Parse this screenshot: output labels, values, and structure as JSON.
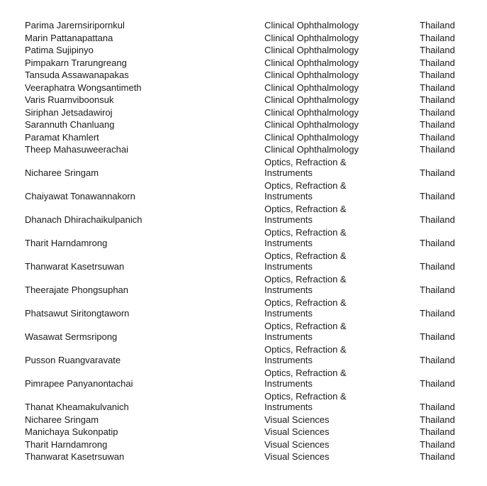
{
  "page": {
    "background_color": "#ffffff",
    "text_color": "#1a1a1a"
  },
  "table": {
    "fields": [
      "name",
      "subject",
      "country"
    ],
    "rows": [
      {
        "name": "Parima Jarernsiripornkul",
        "subject": "Clinical Ophthalmology",
        "country": "Thailand"
      },
      {
        "name": "Marin Pattanapattana",
        "subject": "Clinical Ophthalmology",
        "country": "Thailand"
      },
      {
        "name": "Patima Sujipinyo",
        "subject": "Clinical Ophthalmology",
        "country": "Thailand"
      },
      {
        "name": "Pimpakarn Trarungreang",
        "subject": "Clinical Ophthalmology",
        "country": "Thailand"
      },
      {
        "name": "Tansuda Assawanapakas",
        "subject": "Clinical Ophthalmology",
        "country": "Thailand"
      },
      {
        "name": "Veeraphatra Wongsantimeth",
        "subject": "Clinical Ophthalmology",
        "country": "Thailand"
      },
      {
        "name": "Varis Ruamviboonsuk",
        "subject": "Clinical Ophthalmology",
        "country": "Thailand"
      },
      {
        "name": "Siriphan Jetsadawiroj",
        "subject": "Clinical Ophthalmology",
        "country": "Thailand"
      },
      {
        "name": "Sarannuth Chanluang",
        "subject": "Clinical Ophthalmology",
        "country": "Thailand"
      },
      {
        "name": "Paramat Khamlert",
        "subject": "Clinical Ophthalmology",
        "country": "Thailand"
      },
      {
        "name": "Theep Mahasuweerachai",
        "subject": "Clinical Ophthalmology",
        "country": "Thailand"
      },
      {
        "name": "Nicharee Sringam",
        "subject": "Optics, Refraction & Instruments",
        "country": "Thailand"
      },
      {
        "name": "Chaiyawat Tonawannakorn",
        "subject": "Optics, Refraction & Instruments",
        "country": "Thailand"
      },
      {
        "name": "Dhanach Dhirachaikulpanich",
        "subject": "Optics, Refraction & Instruments",
        "country": "Thailand"
      },
      {
        "name": "Tharit Harndamrong",
        "subject": "Optics, Refraction & Instruments",
        "country": "Thailand"
      },
      {
        "name": "Thanwarat Kasetrsuwan",
        "subject": "Optics, Refraction & Instruments",
        "country": "Thailand"
      },
      {
        "name": "Theerajate Phongsuphan",
        "subject": "Optics, Refraction & Instruments",
        "country": "Thailand"
      },
      {
        "name": "Phatsawut Siritongtaworn",
        "subject": "Optics, Refraction & Instruments",
        "country": "Thailand"
      },
      {
        "name": "Wasawat Sermsripong",
        "subject": "Optics, Refraction & Instruments",
        "country": "Thailand"
      },
      {
        "name": "Pusson Ruangvaravate",
        "subject": "Optics, Refraction & Instruments",
        "country": "Thailand"
      },
      {
        "name": "Pimrapee Panyanontachai",
        "subject": "Optics, Refraction & Instruments",
        "country": "Thailand"
      },
      {
        "name": "Thanat Kheamakulvanich",
        "subject": "Optics, Refraction & Instruments",
        "country": "Thailand"
      },
      {
        "name": "Nicharee Sringam",
        "subject": "Visual Sciences",
        "country": "Thailand"
      },
      {
        "name": "Manichaya Sukonpatip",
        "subject": "Visual Sciences",
        "country": "Thailand"
      },
      {
        "name": "Tharit Harndamrong",
        "subject": "Visual Sciences",
        "country": "Thailand"
      },
      {
        "name": "Thanwarat Kasetrsuwan",
        "subject": "Visual Sciences",
        "country": "Thailand"
      }
    ]
  }
}
